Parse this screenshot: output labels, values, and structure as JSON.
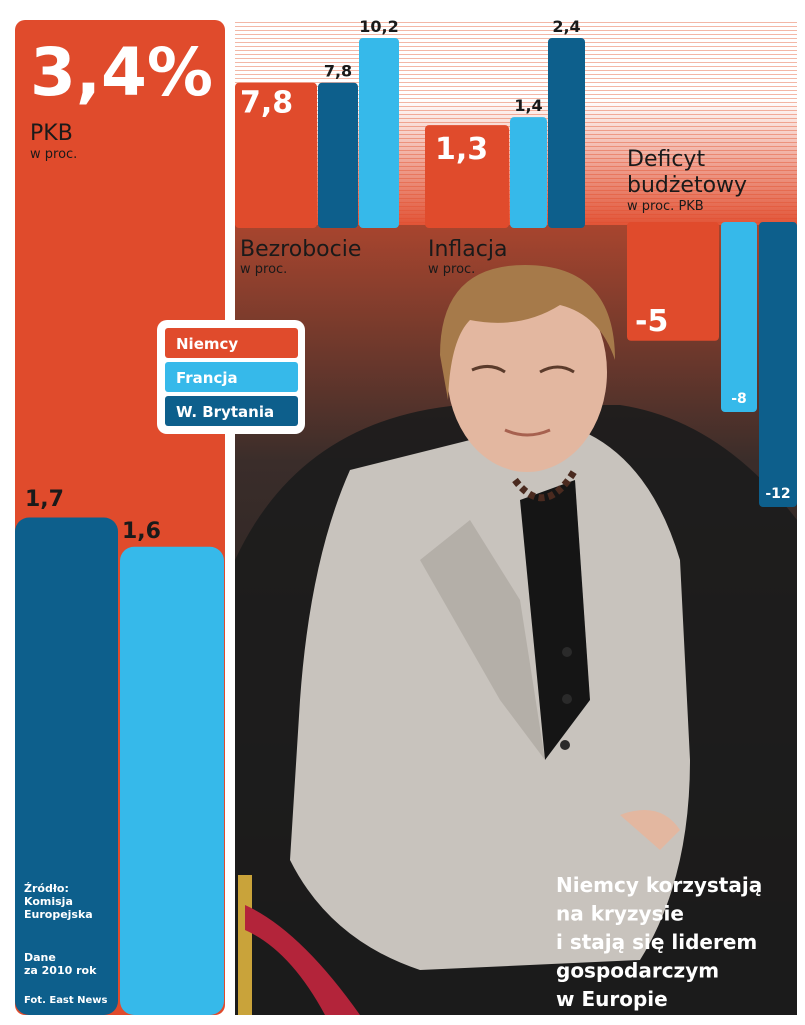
{
  "colors": {
    "niemcy": "#e04b2c",
    "francja": "#36b9ea",
    "brytania": "#0d5f8c",
    "photo_bg": "#2a2828",
    "text_dark": "#1a1a1a",
    "white": "#ffffff"
  },
  "legend": [
    "Niemcy",
    "Francja",
    "W. Brytania"
  ],
  "caption": [
    "Niemcy korzystają",
    "na kryzysie",
    "i stają się liderem",
    "gospodarczym",
    "w Europie"
  ],
  "source": {
    "lines": [
      "Źródło:",
      "Komisja",
      "Europejska"
    ],
    "year_lines": [
      "Dane",
      "za 2010 rok"
    ],
    "photo": "Fot. East News"
  },
  "photo_icon": "woman-photo-icon",
  "chart_data": [
    {
      "type": "bar",
      "title": "PKB",
      "subtitle": "w proc.",
      "series": [
        {
          "name": "Niemcy",
          "value": 3.4,
          "label": "3,4%"
        },
        {
          "name": "W. Brytania",
          "value": 1.7,
          "label": "1,7"
        },
        {
          "name": "Francja",
          "value": 1.6,
          "label": "1,6"
        }
      ]
    },
    {
      "type": "bar",
      "title": "Bezrobocie",
      "subtitle": "w proc.",
      "series": [
        {
          "name": "Niemcy",
          "value": 7.8,
          "label": "7,8"
        },
        {
          "name": "W. Brytania",
          "value": 7.8,
          "label": "7,8"
        },
        {
          "name": "Francja",
          "value": 10.2,
          "label": "10,2"
        }
      ]
    },
    {
      "type": "bar",
      "title": "Inflacja",
      "subtitle": "w proc.",
      "series": [
        {
          "name": "Niemcy",
          "value": 1.3,
          "label": "1,3"
        },
        {
          "name": "Francja",
          "value": 1.4,
          "label": "1,4"
        },
        {
          "name": "W. Brytania",
          "value": 2.4,
          "label": "2,4"
        }
      ]
    },
    {
      "type": "bar",
      "title": [
        "Deficyt",
        "budżetowy"
      ],
      "subtitle": "w proc. PKB",
      "series": [
        {
          "name": "Niemcy",
          "value": -5,
          "label": "-5"
        },
        {
          "name": "Francja",
          "value": -8,
          "label": "-8"
        },
        {
          "name": "W. Brytania",
          "value": -12,
          "label": "-12"
        }
      ]
    }
  ]
}
